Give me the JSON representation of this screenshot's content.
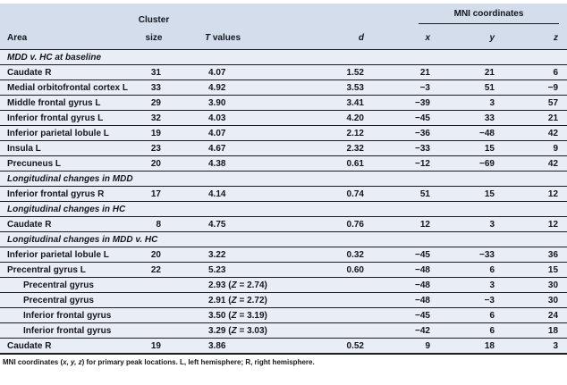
{
  "colors": {
    "header_bg": "#d3ddec",
    "row_bg": "#e9eef6",
    "rule": "#1c1c1c",
    "text": "#15151c"
  },
  "table": {
    "header": {
      "area": "Area",
      "cluster_top": "Cluster",
      "cluster_bottom": "size",
      "t_label_italic": "T",
      "t_label_rest": " values",
      "d": "d",
      "mni_group": "MNI coordinates",
      "x": "x",
      "y": "y",
      "z": "z"
    },
    "rows": [
      {
        "type": "section",
        "label": "MDD v. HC at baseline"
      },
      {
        "type": "data",
        "indent": false,
        "area": "Caudate R",
        "cluster": "31",
        "t": "4.07",
        "d": "1.52",
        "x": "21",
        "y": "21",
        "z": "6"
      },
      {
        "type": "data",
        "indent": false,
        "area": "Medial orbitofrontal cortex L",
        "cluster": "33",
        "t": "4.92",
        "d": "3.53",
        "x": "−3",
        "y": "51",
        "z": "−9"
      },
      {
        "type": "data",
        "indent": false,
        "area": "Middle frontal gyrus L",
        "cluster": "29",
        "t": "3.90",
        "d": "3.41",
        "x": "−39",
        "y": "3",
        "z": "57"
      },
      {
        "type": "data",
        "indent": false,
        "area": "Inferior frontal gyrus L",
        "cluster": "32",
        "t": "4.03",
        "d": "4.20",
        "x": "−45",
        "y": "33",
        "z": "21"
      },
      {
        "type": "data",
        "indent": false,
        "area": "Inferior parietal lobule L",
        "cluster": "19",
        "t": "4.07",
        "d": "2.12",
        "x": "−36",
        "y": "−48",
        "z": "42"
      },
      {
        "type": "data",
        "indent": false,
        "area": "Insula L",
        "cluster": "23",
        "t": "4.67",
        "d": "2.32",
        "x": "−33",
        "y": "15",
        "z": "9"
      },
      {
        "type": "data",
        "indent": false,
        "area": "Precuneus L",
        "cluster": "20",
        "t": "4.38",
        "d": "0.61",
        "x": "−12",
        "y": "−69",
        "z": "42"
      },
      {
        "type": "section",
        "label": "Longitudinal changes in MDD"
      },
      {
        "type": "data",
        "indent": false,
        "area": "Inferior frontal gyrus R",
        "cluster": "17",
        "t": "4.14",
        "d": "0.74",
        "x": "51",
        "y": "15",
        "z": "12"
      },
      {
        "type": "section",
        "label": "Longitudinal changes in HC"
      },
      {
        "type": "data",
        "indent": false,
        "area": "Caudate R",
        "cluster": "8",
        "t": "4.75",
        "d": "0.76",
        "x": "12",
        "y": "3",
        "z": "12"
      },
      {
        "type": "section",
        "label": "Longitudinal changes in MDD v. HC"
      },
      {
        "type": "data",
        "indent": false,
        "area": "Inferior parietal lobule L",
        "cluster": "20",
        "t": "3.22",
        "d": "0.32",
        "x": "−45",
        "y": "−33",
        "z": "36"
      },
      {
        "type": "data",
        "indent": false,
        "area": "Precentral gyrus L",
        "cluster": "22",
        "t": "5.23",
        "d": "0.60",
        "x": "−48",
        "y": "6",
        "z": "15"
      },
      {
        "type": "data",
        "indent": true,
        "area": "Precentral gyrus",
        "cluster": "",
        "t": "2.93 (Z = 2.74)",
        "d": "",
        "x": "−48",
        "y": "3",
        "z": "30"
      },
      {
        "type": "data",
        "indent": true,
        "area": "Precentral gyrus",
        "cluster": "",
        "t": "2.91 (Z = 2.72)",
        "d": "",
        "x": "−48",
        "y": "−3",
        "z": "30"
      },
      {
        "type": "data",
        "indent": true,
        "area": "Inferior frontal gyrus",
        "cluster": "",
        "t": "3.50 (Z = 3.19)",
        "d": "",
        "x": "−45",
        "y": "6",
        "z": "24"
      },
      {
        "type": "data",
        "indent": true,
        "area": "Inferior frontal gyrus",
        "cluster": "",
        "t": "3.29 (Z = 3.03)",
        "d": "",
        "x": "−42",
        "y": "6",
        "z": "18"
      },
      {
        "type": "data",
        "indent": false,
        "area": "Caudate R",
        "cluster": "19",
        "t": "3.86",
        "d": "0.52",
        "x": "9",
        "y": "18",
        "z": "3"
      }
    ],
    "footnote": {
      "prefix": "MNI coordinates (",
      "italic_coords": "x, y, z",
      "suffix": ") for primary peak locations. L, left hemisphere; R, right hemisphere."
    }
  }
}
